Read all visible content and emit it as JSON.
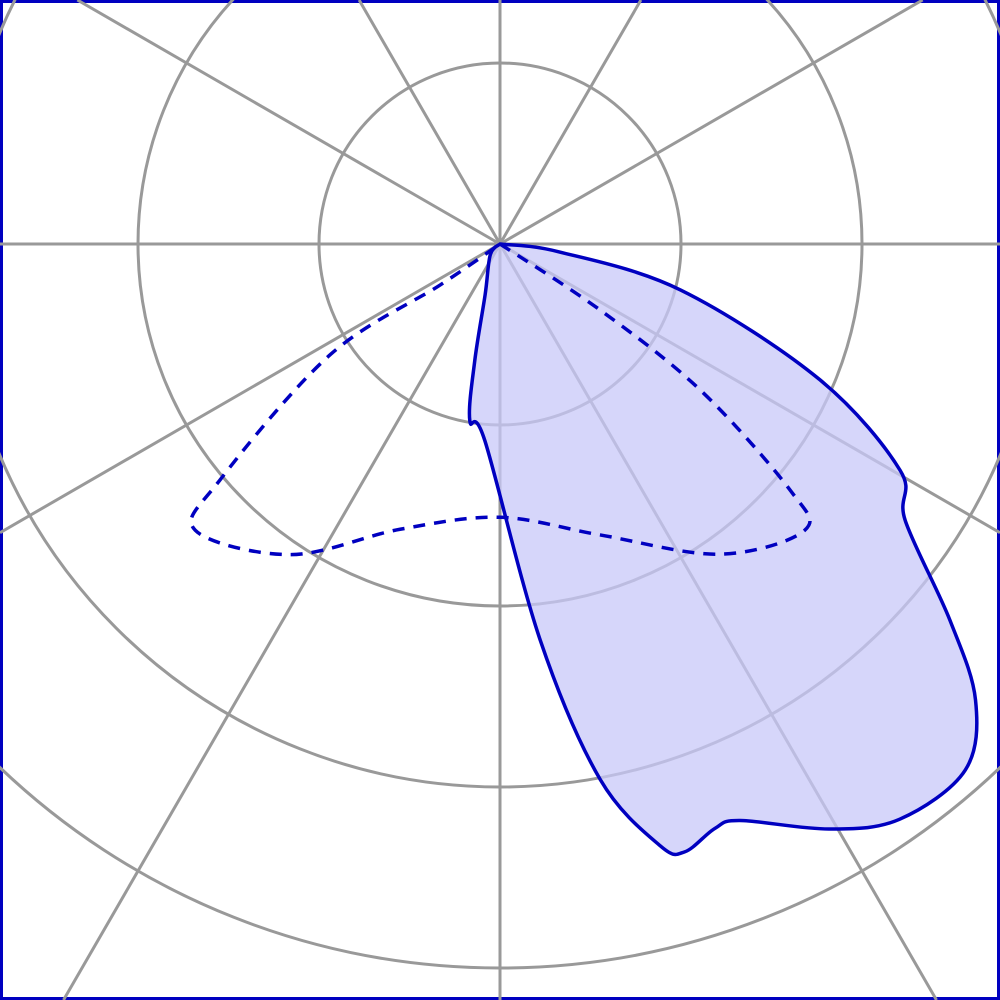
{
  "chart_data": {
    "type": "line",
    "subtype": "polar-light-distribution",
    "title": "",
    "radial_rings": [
      1,
      2,
      3,
      4
    ],
    "angle_spokes_deg": 30,
    "angle_zero": "down",
    "grid": true,
    "colors": {
      "grid": "#999999",
      "series": "#0000c0",
      "fill": "#c8c8f8",
      "frame": "#0000c0"
    },
    "series": [
      {
        "style": "solid-filled",
        "theta_deg": [
          90,
          82.4,
          75.7,
          67,
          60.5,
          55.7,
          50.1,
          46.2,
          41.5,
          34.8,
          29.4,
          22.6,
          20.2,
          16.9,
          14.9,
          10.6,
          5.8,
          -4.4,
          -9.7,
          -12.2,
          -16.4,
          -42,
          -90
        ],
        "r": [
          0,
          0.33,
          1.03,
          1.92,
          2.54,
          2.71,
          3.24,
          3.64,
          3.88,
          3.87,
          3.71,
          3.45,
          3.44,
          3.51,
          3.44,
          3.01,
          2.2,
          1.09,
          0.99,
          0.66,
          0.29,
          0.08,
          0
        ]
      },
      {
        "style": "dashed",
        "theta_deg": [
          90,
          56.6,
          53.9,
          49.7,
          46.8,
          35.3,
          19,
          0,
          -19.3,
          -34,
          -46.8,
          -49.9,
          -56.9,
          -55.6,
          -90
        ],
        "r": [
          0,
          0.66,
          1.37,
          2.1,
          2.31,
          2.1,
          1.7,
          1.51,
          1.67,
          2.07,
          2.31,
          2.02,
          1.12,
          0.4,
          0
        ]
      }
    ]
  }
}
